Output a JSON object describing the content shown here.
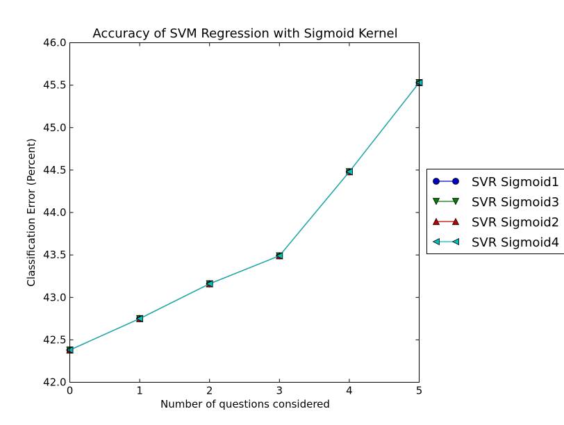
{
  "chart_data": {
    "type": "line",
    "title": "Accuracy of SVM Regression with Sigmoid Kernel",
    "xlabel": "Number of questions considered",
    "ylabel": "Classification Error (Percent)",
    "xlim": [
      0,
      5
    ],
    "ylim": [
      42.0,
      46.0
    ],
    "xticks": [
      "0",
      "1",
      "2",
      "3",
      "4",
      "5"
    ],
    "yticks": [
      "42.0",
      "42.5",
      "43.0",
      "43.5",
      "44.0",
      "44.5",
      "45.0",
      "45.5",
      "46.0"
    ],
    "grid": false,
    "legend_position": "right, outside plot (clipped)",
    "x": [
      0,
      1,
      2,
      3,
      4,
      5
    ],
    "series": [
      {
        "name": "SVR Sigmoid1",
        "color": "#0000bf",
        "marker": "circle",
        "values": [
          42.38,
          42.75,
          43.16,
          43.49,
          44.48,
          45.53
        ]
      },
      {
        "name": "SVR Sigmoid3",
        "color": "#007f00",
        "marker": "triangle-down",
        "values": [
          42.38,
          42.75,
          43.16,
          43.49,
          44.48,
          45.53
        ]
      },
      {
        "name": "SVR Sigmoid2",
        "color": "#bf0000",
        "marker": "triangle-up",
        "values": [
          42.38,
          42.75,
          43.16,
          43.49,
          44.48,
          45.53
        ]
      },
      {
        "name": "SVR Sigmoid4",
        "color": "#00bfbf",
        "marker": "triangle-left",
        "values": [
          42.38,
          42.75,
          43.16,
          43.49,
          44.48,
          45.53
        ]
      }
    ]
  }
}
